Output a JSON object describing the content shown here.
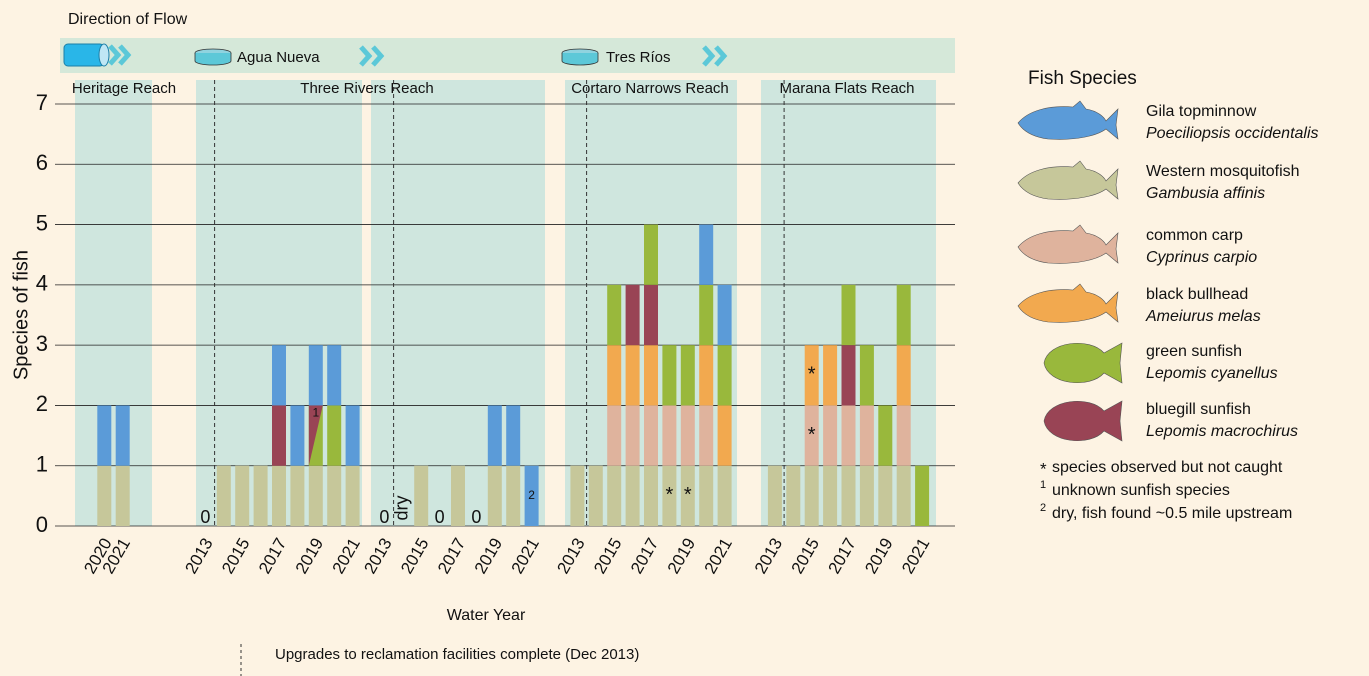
{
  "chart_data": {
    "type": "bar",
    "stacked": true,
    "flow_title": "Direction of Flow",
    "facilities": [
      "Agua Nueva",
      "Tres Ríos"
    ],
    "reaches": [
      "Heritage Reach",
      "Three Rivers Reach",
      "Cortaro Narrows Reach",
      "Marana Flats Reach"
    ],
    "ylabel": "Species of fish",
    "xlabel": "Water Year",
    "ylim": [
      0,
      7
    ],
    "yticks": [
      0,
      1,
      2,
      3,
      4,
      5,
      6,
      7
    ],
    "grid": true,
    "legend_title": "Fish Species",
    "series": [
      {
        "name": "Gila topminnow",
        "scientific": "Poeciliopsis occidentalis",
        "color": "#5b9bd8"
      },
      {
        "name": "Western mosquitofish",
        "scientific": "Gambusia affinis",
        "color": "#c6c79a"
      },
      {
        "name": "common carp",
        "scientific": "Cyprinus carpio",
        "color": "#dfb39d"
      },
      {
        "name": "black bullhead",
        "scientific": "Ameiurus melas",
        "color": "#f2a94f"
      },
      {
        "name": "green sunfish",
        "scientific": "Lepomis cyanellus",
        "color": "#99b83c"
      },
      {
        "name": "bluegill sunfish",
        "scientific": "Lepomis macrochirus",
        "color": "#994455"
      }
    ],
    "footnotes": [
      {
        "marker": "*",
        "text": "species observed but not caught"
      },
      {
        "marker": "1",
        "text": "unknown sunfish species"
      },
      {
        "marker": "2",
        "text": "dry, fish found ~0.5 mile upstream"
      }
    ],
    "event_label": "Upgrades to reclamation facilities complete (Dec 2013)",
    "panels": [
      {
        "categories": [
          "2020",
          "2021"
        ],
        "event_line": false,
        "series": [
          {
            "values": [
              1,
              1
            ]
          },
          {
            "values": [
              1,
              1
            ]
          },
          {
            "values": [
              0,
              0
            ]
          },
          {
            "values": [
              0,
              0
            ]
          },
          {
            "values": [
              0,
              0
            ]
          },
          {
            "values": [
              0,
              0
            ]
          }
        ]
      },
      {
        "categories": [
          "2013",
          null,
          "2015",
          null,
          "2017",
          null,
          "2019",
          null,
          "2021"
        ],
        "event_line": true,
        "labels": [
          0,
          null,
          null,
          null,
          null,
          null,
          null,
          null,
          null
        ],
        "series": [
          {
            "values": [
              0,
              0,
              0,
              0,
              1,
              1,
              1,
              1,
              1
            ]
          },
          {
            "values": [
              0,
              1,
              1,
              1,
              1,
              1,
              1,
              1,
              1
            ]
          },
          {
            "values": [
              0,
              0,
              0,
              0,
              0,
              0,
              0,
              0,
              0
            ]
          },
          {
            "values": [
              0,
              0,
              0,
              0,
              0,
              0,
              0,
              0,
              0
            ]
          },
          {
            "values": [
              0,
              0,
              0,
              0,
              0,
              0,
              1,
              1,
              0
            ],
            "notes": [
              null,
              null,
              null,
              null,
              null,
              null,
              "1",
              null,
              null
            ]
          },
          {
            "values": [
              0,
              0,
              0,
              0,
              1,
              0,
              0,
              0,
              0
            ]
          }
        ]
      },
      {
        "categories": [
          "2013",
          null,
          "2015",
          null,
          "2017",
          null,
          "2019",
          null,
          "2021"
        ],
        "event_line": true,
        "labels": [
          0,
          "dry",
          null,
          0,
          null,
          0,
          null,
          null,
          null
        ],
        "series": [
          {
            "values": [
              0,
              null,
              0,
              0,
              0,
              0,
              1,
              1,
              1
            ],
            "notes": [
              null,
              null,
              null,
              null,
              null,
              null,
              null,
              null,
              "2"
            ]
          },
          {
            "values": [
              0,
              null,
              1,
              0,
              1,
              0,
              1,
              1,
              0
            ]
          },
          {
            "values": [
              0,
              null,
              0,
              0,
              0,
              0,
              0,
              0,
              0
            ]
          },
          {
            "values": [
              0,
              null,
              0,
              0,
              0,
              0,
              0,
              0,
              0
            ]
          },
          {
            "values": [
              0,
              null,
              0,
              0,
              0,
              0,
              0,
              0,
              0
            ]
          },
          {
            "values": [
              0,
              null,
              0,
              0,
              0,
              0,
              0,
              0,
              0
            ]
          }
        ]
      },
      {
        "categories": [
          "2013",
          null,
          "2015",
          null,
          "2017",
          null,
          "2019",
          null,
          "2021"
        ],
        "event_line": true,
        "series": [
          {
            "values": [
              0,
              0,
              0,
              0,
              0,
              0,
              0,
              1,
              1
            ]
          },
          {
            "values": [
              1,
              1,
              1,
              1,
              1,
              1,
              1,
              1,
              1
            ],
            "notes": [
              null,
              null,
              null,
              null,
              null,
              "*",
              "*",
              null,
              null
            ]
          },
          {
            "values": [
              0,
              0,
              1,
              1,
              1,
              1,
              1,
              1,
              0
            ]
          },
          {
            "values": [
              0,
              0,
              1,
              1,
              1,
              0,
              0,
              1,
              1
            ]
          },
          {
            "values": [
              0,
              0,
              1,
              0,
              1,
              1,
              1,
              1,
              1
            ]
          },
          {
            "values": [
              0,
              0,
              0,
              1,
              1,
              0,
              0,
              0,
              0
            ]
          }
        ]
      },
      {
        "categories": [
          "2013",
          null,
          "2015",
          null,
          "2017",
          null,
          "2019",
          null,
          "2021"
        ],
        "event_line": true,
        "series": [
          {
            "values": [
              0,
              0,
              0,
              0,
              0,
              0,
              0,
              0,
              0
            ]
          },
          {
            "values": [
              1,
              1,
              1,
              1,
              1,
              1,
              1,
              1,
              0
            ]
          },
          {
            "values": [
              0,
              0,
              1,
              1,
              1,
              1,
              0,
              1,
              0
            ],
            "notes": [
              null,
              null,
              "*",
              null,
              null,
              null,
              null,
              null,
              null
            ]
          },
          {
            "values": [
              0,
              0,
              1,
              1,
              0,
              0,
              0,
              1,
              0
            ],
            "notes": [
              null,
              null,
              "*",
              null,
              null,
              null,
              null,
              null,
              null
            ]
          },
          {
            "values": [
              0,
              0,
              0,
              0,
              1,
              1,
              1,
              1,
              1
            ]
          },
          {
            "values": [
              0,
              0,
              0,
              0,
              1,
              0,
              0,
              0,
              0
            ]
          }
        ]
      }
    ]
  }
}
